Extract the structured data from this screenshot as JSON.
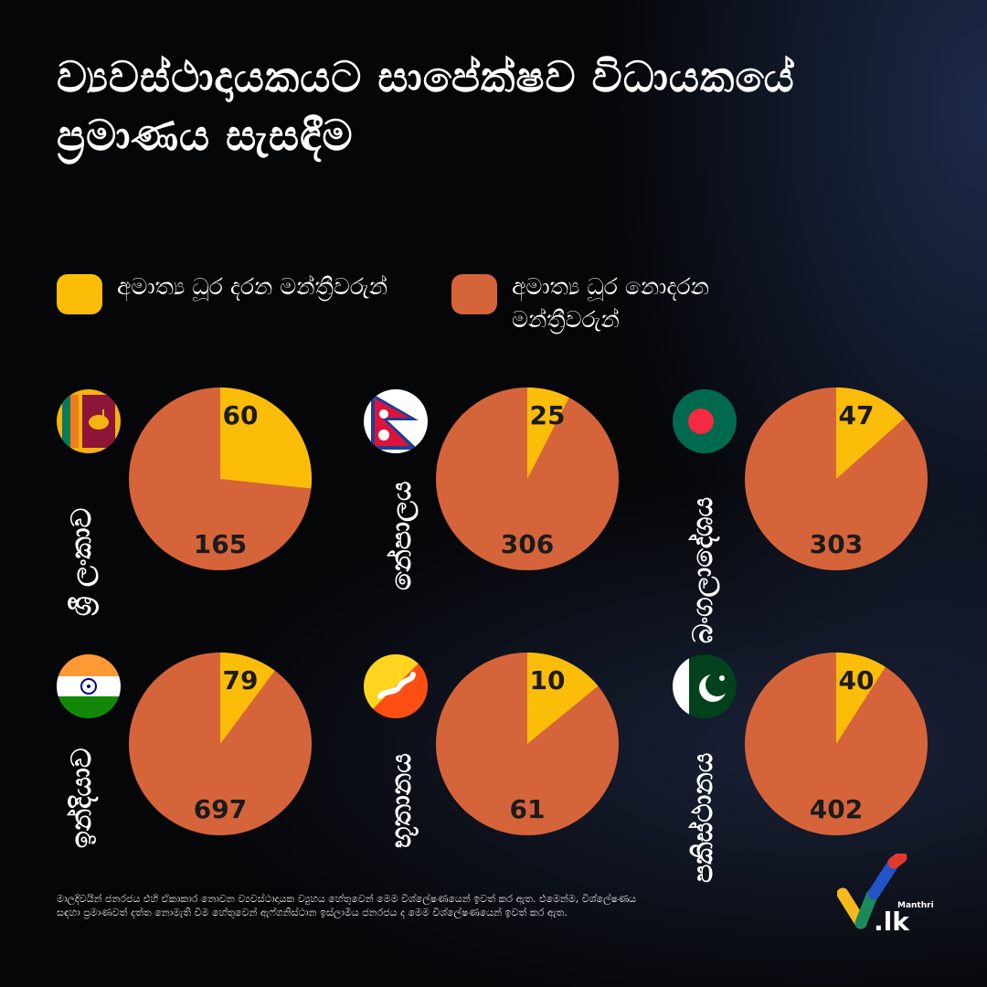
{
  "title": "ව්‍යවස්ථාදායකයට සාපේක්ෂව විධායකයේ ප්‍රමාණය සැසඳීම",
  "legend": {
    "minister": "අමාත්‍ය ධූර දරන මන්ත්‍රීවරුන්",
    "non_minister": "අමාත්‍ය ධූර නොදරන මන්ත්‍රීවරුන්"
  },
  "colors": {
    "minister": "#fbbd08",
    "non_minister": "#d6643a"
  },
  "chart_data": [
    {
      "type": "pie",
      "title": "ශ්‍රී ලංකාව",
      "flag": "sri-lanka-flag-icon",
      "labels": [
        "අමාත්‍ය ධූර දරන මන්ත්‍රීවරුන්",
        "අමාත්‍ය ධූර නොදරන මන්ත්‍රීවරුන්"
      ],
      "values": [
        60,
        165
      ]
    },
    {
      "type": "pie",
      "title": "නේපාලය",
      "flag": "nepal-flag-icon",
      "labels": [
        "අමාත්‍ය ධූර දරන මන්ත්‍රීවරුන්",
        "අමාත්‍ය ධූර නොදරන මන්ත්‍රීවරුන්"
      ],
      "values": [
        25,
        306
      ]
    },
    {
      "type": "pie",
      "title": "බංගලාදේශය",
      "flag": "bangladesh-flag-icon",
      "labels": [
        "අමාත්‍ය ධූර දරන මන්ත්‍රීවරුන්",
        "අමාත්‍ය ධූර නොදරන මන්ත්‍රීවරුන්"
      ],
      "values": [
        47,
        303
      ]
    },
    {
      "type": "pie",
      "title": "ඉන්දියාව",
      "flag": "india-flag-icon",
      "labels": [
        "අමාත්‍ය ධූර දරන මන්ත්‍රීවරුන්",
        "අමාත්‍ය ධූර නොදරන මන්ත්‍රීවරුන්"
      ],
      "values": [
        79,
        697
      ]
    },
    {
      "type": "pie",
      "title": "භූතානය",
      "flag": "bhutan-flag-icon",
      "labels": [
        "අමාත්‍ය ධූර දරන මන්ත්‍රීවරුන්",
        "අමාත්‍ය ධූර නොදරන මන්ත්‍රීවරුන්"
      ],
      "values": [
        10,
        61
      ]
    },
    {
      "type": "pie",
      "title": "පකිස්ථානය",
      "flag": "pakistan-flag-icon",
      "labels": [
        "අමාත්‍ය ධූර දරන මන්ත්‍රීවරුන්",
        "අමාත්‍ය ධූර නොදරන මන්ත්‍රීවරුන්"
      ],
      "values": [
        40,
        402
      ]
    }
  ],
  "footnote": "මාලදිවයින් ජනරජය එහි ඒකාකාර නොවන ව්‍යවස්ථාදායක ව්‍යුහය හේතුවෙන් මෙම විශ්ලේෂණයෙන් ඉවත් කර ඇත. එමෙන්ම, විශ්ලේෂණය සඳහා ප්‍රමාණවත් දත්ත නොමැති වීම හේතුවෙන් ඇෆ්ගනිස්ථාන ඉස්ලාමීය ජනරජය ද මෙම විශ්ලේෂණයෙන් ඉවත් කර ඇත.",
  "logo": {
    "name": "Manthri",
    "suffix": ".lk",
    "icon": "checkmark-logo-icon"
  }
}
